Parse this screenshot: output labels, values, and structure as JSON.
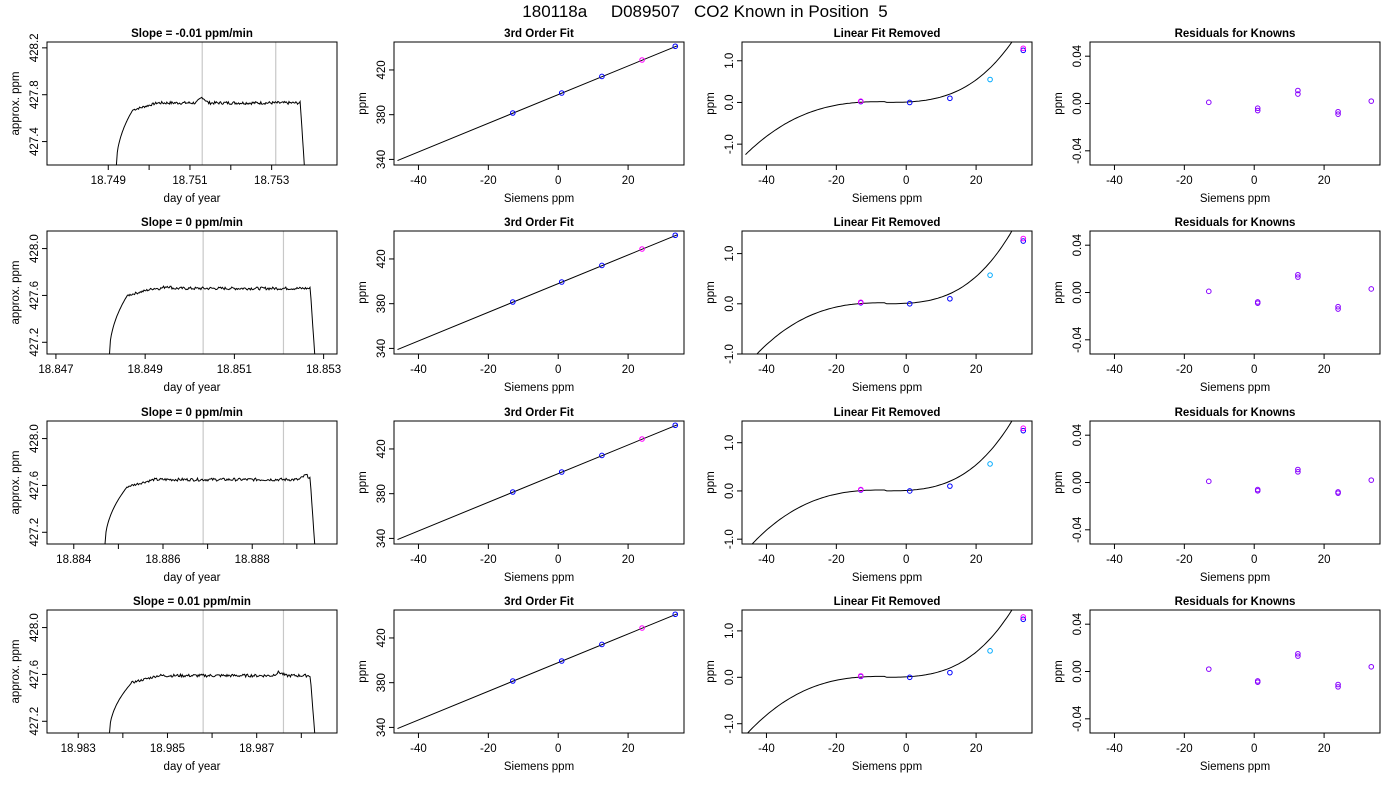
{
  "figure": {
    "title": "180118a     D089507   CO2 Known in Position  5"
  },
  "colors": {
    "blue": "#0000ff",
    "magenta": "#ff00ff",
    "cyan": "#00aaff",
    "purple": "#8800ff",
    "red": "#ff0000",
    "line": "#000000",
    "marker_lines": "#c8c8c8"
  },
  "chart_data": [
    {
      "row": 0,
      "type": "line",
      "title": "Slope =  -0.01  ppm/min",
      "xlabel": "day of year",
      "ylabel": "approx. ppm",
      "xlim": [
        18.7475,
        18.7546
      ],
      "ylim": [
        427.2,
        428.25
      ],
      "xticks": [
        "18.749",
        "18.751",
        "18.753"
      ],
      "xtick_values": [
        18.749,
        18.751,
        18.753
      ],
      "xminor": [
        18.75,
        18.752
      ],
      "yticks": [
        "427.4",
        "427.8",
        "428.2"
      ],
      "ytick_values": [
        427.4,
        427.8,
        428.2
      ],
      "vlines": [
        18.7513,
        18.7531
      ],
      "trace": {
        "start": 18.7492,
        "rise_end": 18.7496,
        "plateau": 427.73,
        "end_plateau": 18.7537,
        "end": 18.7538,
        "low": 427.2,
        "bump_x": 18.7513,
        "bump_h": 0.05
      }
    },
    {
      "row": 0,
      "type": "scatter",
      "title": "3rd Order Fit",
      "xlabel": "Siemens ppm",
      "ylabel": "ppm",
      "xlim": [
        -47,
        36
      ],
      "ylim": [
        335,
        445
      ],
      "xticks": [
        "-40",
        "-20",
        "0",
        "20"
      ],
      "xtick_values": [
        -40,
        -20,
        0,
        20
      ],
      "yticks": [
        "340",
        "380",
        "420"
      ],
      "ytick_values": [
        340,
        380,
        420
      ],
      "line": {
        "x0": -46,
        "y0": 339,
        "x1": 34,
        "y1": 441.5
      },
      "points": [
        {
          "x": -13,
          "y": 381.5,
          "c": "blue"
        },
        {
          "x": 1,
          "y": 399.4,
          "c": "blue"
        },
        {
          "x": 12.5,
          "y": 414.2,
          "c": "blue"
        },
        {
          "x": 24,
          "y": 428.9,
          "c": "magenta"
        },
        {
          "x": 33.5,
          "y": 441.2,
          "c": "blue"
        }
      ]
    },
    {
      "row": 0,
      "type": "scatter",
      "title": "Linear Fit Removed",
      "xlabel": "Siemens ppm",
      "ylabel": "ppm",
      "xlim": [
        -47,
        36
      ],
      "ylim": [
        -1.5,
        1.45
      ],
      "xticks": [
        "-40",
        "-20",
        "0",
        "20"
      ],
      "xtick_values": [
        -40,
        -20,
        0,
        20
      ],
      "yticks": [
        "-1.0",
        "0.0",
        "1.0"
      ],
      "ytick_values": [
        -1.0,
        0.0,
        1.0
      ],
      "curve_range": [
        -46,
        33.5
      ],
      "points": [
        {
          "x": -13,
          "y": 0.02,
          "c": "blue"
        },
        {
          "x": -13,
          "y": 0.03,
          "c": "magenta"
        },
        {
          "x": 1,
          "y": 0.0,
          "c": "blue"
        },
        {
          "x": 12.5,
          "y": 0.1,
          "c": "blue"
        },
        {
          "x": 24,
          "y": 0.55,
          "c": "cyan"
        },
        {
          "x": 33.5,
          "y": 1.25,
          "c": "blue"
        },
        {
          "x": 33.5,
          "y": 1.3,
          "c": "magenta"
        }
      ]
    },
    {
      "row": 0,
      "type": "scatter",
      "title": "Residuals for Knowns",
      "xlabel": "Siemens ppm",
      "ylabel": "ppm",
      "xlim": [
        -47,
        36
      ],
      "ylim": [
        -0.052,
        0.052
      ],
      "xticks": [
        "-40",
        "-20",
        "0",
        "20"
      ],
      "xtick_values": [
        -40,
        -20,
        0,
        20
      ],
      "yticks": [
        "-0.04",
        "0.00",
        "0.04"
      ],
      "ytick_values": [
        -0.04,
        0.0,
        0.04
      ],
      "points": [
        {
          "x": -13,
          "y": 0.001,
          "c": "purple"
        },
        {
          "x": 1,
          "y": -0.004,
          "c": "purple"
        },
        {
          "x": 1,
          "y": -0.006,
          "c": "purple"
        },
        {
          "x": 12.5,
          "y": 0.008,
          "c": "purple"
        },
        {
          "x": 12.5,
          "y": 0.011,
          "c": "purple"
        },
        {
          "x": 24,
          "y": -0.007,
          "c": "purple"
        },
        {
          "x": 24,
          "y": -0.009,
          "c": "purple"
        },
        {
          "x": 33.5,
          "y": 0.002,
          "c": "purple"
        }
      ]
    },
    {
      "row": 1,
      "type": "line",
      "title": "Slope =  0  ppm/min",
      "xlabel": "day of year",
      "ylabel": "approx. ppm",
      "xlim": [
        18.8468,
        18.8533
      ],
      "ylim": [
        427.1,
        428.15
      ],
      "xticks": [
        "18.847",
        "18.849",
        "18.851",
        "18.853"
      ],
      "xtick_values": [
        18.847,
        18.849,
        18.851,
        18.853
      ],
      "xminor": [],
      "yticks": [
        "427.2",
        "427.6",
        "428.0"
      ],
      "ytick_values": [
        427.2,
        427.6,
        428.0
      ],
      "vlines": [
        18.8503,
        18.8521
      ],
      "trace": {
        "start": 18.8482,
        "rise_end": 18.8486,
        "plateau": 427.66,
        "end_plateau": 18.8527,
        "end": 18.8528,
        "low": 427.1,
        "bump_x": 18.8495,
        "bump_h": 0.02
      }
    },
    {
      "row": 1,
      "type": "scatter",
      "title": "3rd Order Fit",
      "xlabel": "Siemens ppm",
      "ylabel": "ppm",
      "xlim": [
        -47,
        36
      ],
      "ylim": [
        335,
        445
      ],
      "xticks": [
        "-40",
        "-20",
        "0",
        "20"
      ],
      "xtick_values": [
        -40,
        -20,
        0,
        20
      ],
      "yticks": [
        "340",
        "380",
        "420"
      ],
      "ytick_values": [
        340,
        380,
        420
      ],
      "line": {
        "x0": -46,
        "y0": 339,
        "x1": 34,
        "y1": 441.5
      },
      "points": [
        {
          "x": -13,
          "y": 381.5,
          "c": "blue"
        },
        {
          "x": 1,
          "y": 399.4,
          "c": "blue"
        },
        {
          "x": 12.5,
          "y": 414.2,
          "c": "blue"
        },
        {
          "x": 24,
          "y": 428.9,
          "c": "magenta"
        },
        {
          "x": 33.5,
          "y": 441.2,
          "c": "blue"
        }
      ]
    },
    {
      "row": 1,
      "type": "scatter",
      "title": "Linear Fit Removed",
      "xlabel": "Siemens ppm",
      "ylabel": "ppm",
      "xlim": [
        -47,
        36
      ],
      "ylim": [
        -1.0,
        1.45
      ],
      "xticks": [
        "-40",
        "-20",
        "0",
        "20"
      ],
      "xtick_values": [
        -40,
        -20,
        0,
        20
      ],
      "yticks": [
        "-1.0",
        "0.0",
        "1.0"
      ],
      "ytick_values": [
        -1.0,
        0.0,
        1.0
      ],
      "curve_range": [
        -46,
        33.5
      ],
      "points": [
        {
          "x": -13,
          "y": 0.02,
          "c": "blue"
        },
        {
          "x": -13,
          "y": 0.03,
          "c": "magenta"
        },
        {
          "x": 1,
          "y": 0.0,
          "c": "blue"
        },
        {
          "x": 12.5,
          "y": 0.1,
          "c": "blue"
        },
        {
          "x": 24,
          "y": 0.57,
          "c": "cyan"
        },
        {
          "x": 33.5,
          "y": 1.25,
          "c": "blue"
        },
        {
          "x": 33.5,
          "y": 1.3,
          "c": "magenta"
        }
      ]
    },
    {
      "row": 1,
      "type": "scatter",
      "title": "Residuals for Knowns",
      "xlabel": "Siemens ppm",
      "ylabel": "ppm",
      "xlim": [
        -47,
        36
      ],
      "ylim": [
        -0.052,
        0.052
      ],
      "xticks": [
        "-40",
        "-20",
        "0",
        "20"
      ],
      "xtick_values": [
        -40,
        -20,
        0,
        20
      ],
      "yticks": [
        "-0.04",
        "0.00",
        "0.04"
      ],
      "ytick_values": [
        -0.04,
        0.0,
        0.04
      ],
      "points": [
        {
          "x": -13,
          "y": 0.001,
          "c": "purple"
        },
        {
          "x": 1,
          "y": -0.008,
          "c": "purple"
        },
        {
          "x": 1,
          "y": -0.009,
          "c": "purple"
        },
        {
          "x": 12.5,
          "y": 0.013,
          "c": "purple"
        },
        {
          "x": 12.5,
          "y": 0.015,
          "c": "purple"
        },
        {
          "x": 24,
          "y": -0.012,
          "c": "purple"
        },
        {
          "x": 24,
          "y": -0.014,
          "c": "purple"
        },
        {
          "x": 33.5,
          "y": 0.003,
          "c": "purple"
        }
      ]
    },
    {
      "row": 2,
      "type": "line",
      "title": "Slope =  0  ppm/min",
      "xlabel": "day of year",
      "ylabel": "approx. ppm",
      "xlim": [
        18.8834,
        18.8899
      ],
      "ylim": [
        427.1,
        428.15
      ],
      "xticks": [
        "18.884",
        "18.886",
        "18.888"
      ],
      "xtick_values": [
        18.884,
        18.886,
        18.888
      ],
      "xminor": [
        18.885,
        18.887,
        18.889
      ],
      "yticks": [
        "427.2",
        "427.6",
        "428.0"
      ],
      "ytick_values": [
        427.2,
        427.6,
        428.0
      ],
      "vlines": [
        18.8869,
        18.8887
      ],
      "trace": {
        "start": 18.8847,
        "rise_end": 18.8852,
        "plateau": 427.65,
        "end_plateau": 18.8893,
        "end": 18.8894,
        "low": 427.1,
        "bump_x": 18.8892,
        "bump_h": 0.04
      }
    },
    {
      "row": 2,
      "type": "scatter",
      "title": "3rd Order Fit",
      "xlabel": "Siemens ppm",
      "ylabel": "ppm",
      "xlim": [
        -47,
        36
      ],
      "ylim": [
        335,
        445
      ],
      "xticks": [
        "-40",
        "-20",
        "0",
        "20"
      ],
      "xtick_values": [
        -40,
        -20,
        0,
        20
      ],
      "yticks": [
        "340",
        "380",
        "420"
      ],
      "ytick_values": [
        340,
        380,
        420
      ],
      "line": {
        "x0": -46,
        "y0": 339,
        "x1": 34,
        "y1": 441.5
      },
      "points": [
        {
          "x": -13,
          "y": 381.5,
          "c": "blue"
        },
        {
          "x": 1,
          "y": 399.4,
          "c": "blue"
        },
        {
          "x": 12.5,
          "y": 414.2,
          "c": "blue"
        },
        {
          "x": 24,
          "y": 428.9,
          "c": "magenta"
        },
        {
          "x": 33.5,
          "y": 441.2,
          "c": "blue"
        }
      ]
    },
    {
      "row": 2,
      "type": "scatter",
      "title": "Linear Fit Removed",
      "xlabel": "Siemens ppm",
      "ylabel": "ppm",
      "xlim": [
        -47,
        36
      ],
      "ylim": [
        -1.1,
        1.45
      ],
      "xticks": [
        "-40",
        "-20",
        "0",
        "20"
      ],
      "xtick_values": [
        -40,
        -20,
        0,
        20
      ],
      "yticks": [
        "-1.0",
        "0.0",
        "1.0"
      ],
      "ytick_values": [
        -1.0,
        0.0,
        1.0
      ],
      "curve_range": [
        -46,
        33.5
      ],
      "points": [
        {
          "x": -13,
          "y": 0.02,
          "c": "blue"
        },
        {
          "x": -13,
          "y": 0.03,
          "c": "magenta"
        },
        {
          "x": 1,
          "y": 0.0,
          "c": "blue"
        },
        {
          "x": 12.5,
          "y": 0.1,
          "c": "blue"
        },
        {
          "x": 24,
          "y": 0.56,
          "c": "cyan"
        },
        {
          "x": 33.5,
          "y": 1.25,
          "c": "blue"
        },
        {
          "x": 33.5,
          "y": 1.3,
          "c": "magenta"
        }
      ]
    },
    {
      "row": 2,
      "type": "scatter",
      "title": "Residuals for Knowns",
      "xlabel": "Siemens ppm",
      "ylabel": "ppm",
      "xlim": [
        -47,
        36
      ],
      "ylim": [
        -0.052,
        0.052
      ],
      "xticks": [
        "-40",
        "-20",
        "0",
        "20"
      ],
      "xtick_values": [
        -40,
        -20,
        0,
        20
      ],
      "yticks": [
        "-0.04",
        "0.00",
        "0.04"
      ],
      "ytick_values": [
        -0.04,
        0.0,
        0.04
      ],
      "points": [
        {
          "x": -13,
          "y": 0.001,
          "c": "purple"
        },
        {
          "x": 1,
          "y": -0.006,
          "c": "purple"
        },
        {
          "x": 1,
          "y": -0.007,
          "c": "purple"
        },
        {
          "x": 12.5,
          "y": 0.009,
          "c": "purple"
        },
        {
          "x": 12.5,
          "y": 0.011,
          "c": "purple"
        },
        {
          "x": 24,
          "y": -0.008,
          "c": "purple"
        },
        {
          "x": 24,
          "y": -0.009,
          "c": "purple"
        },
        {
          "x": 33.5,
          "y": 0.002,
          "c": "purple"
        }
      ]
    },
    {
      "row": 3,
      "type": "line",
      "title": "Slope =  0.01  ppm/min",
      "xlabel": "day of year",
      "ylabel": "approx. ppm",
      "xlim": [
        18.9823,
        18.9888
      ],
      "ylim": [
        427.1,
        428.15
      ],
      "xticks": [
        "18.983",
        "18.985",
        "18.987"
      ],
      "xtick_values": [
        18.983,
        18.985,
        18.987
      ],
      "xminor": [
        18.984,
        18.986,
        18.988
      ],
      "yticks": [
        "427.2",
        "427.6",
        "428.0"
      ],
      "ytick_values": [
        427.2,
        427.6,
        428.0
      ],
      "vlines": [
        18.9858,
        18.9876
      ],
      "trace": {
        "start": 18.9837,
        "rise_end": 18.9842,
        "plateau": 427.59,
        "end_plateau": 18.9882,
        "end": 18.9883,
        "low": 427.1,
        "bump_x": 18.9875,
        "bump_h": 0.03
      }
    },
    {
      "row": 3,
      "type": "scatter",
      "title": "3rd Order Fit",
      "xlabel": "Siemens ppm",
      "ylabel": "ppm",
      "xlim": [
        -47,
        36
      ],
      "ylim": [
        335,
        445
      ],
      "xticks": [
        "-40",
        "-20",
        "0",
        "20"
      ],
      "xtick_values": [
        -40,
        -20,
        0,
        20
      ],
      "yticks": [
        "340",
        "380",
        "420"
      ],
      "ytick_values": [
        340,
        380,
        420
      ],
      "line": {
        "x0": -46,
        "y0": 339,
        "x1": 34,
        "y1": 441.5
      },
      "points": [
        {
          "x": -13,
          "y": 381.5,
          "c": "blue"
        },
        {
          "x": 1,
          "y": 399.4,
          "c": "blue"
        },
        {
          "x": 12.5,
          "y": 414.2,
          "c": "blue"
        },
        {
          "x": 24,
          "y": 428.9,
          "c": "magenta"
        },
        {
          "x": 33.5,
          "y": 441.2,
          "c": "blue"
        }
      ]
    },
    {
      "row": 3,
      "type": "scatter",
      "title": "Linear Fit Removed",
      "xlabel": "Siemens ppm",
      "ylabel": "ppm",
      "xlim": [
        -47,
        36
      ],
      "ylim": [
        -1.2,
        1.45
      ],
      "xticks": [
        "-40",
        "-20",
        "0",
        "20"
      ],
      "xtick_values": [
        -40,
        -20,
        0,
        20
      ],
      "yticks": [
        "-1.0",
        "0.0",
        "1.0"
      ],
      "ytick_values": [
        -1.0,
        0.0,
        1.0
      ],
      "curve_range": [
        -46,
        33.5
      ],
      "points": [
        {
          "x": -13,
          "y": 0.02,
          "c": "blue"
        },
        {
          "x": -13,
          "y": 0.03,
          "c": "magenta"
        },
        {
          "x": 1,
          "y": 0.0,
          "c": "blue"
        },
        {
          "x": 12.5,
          "y": 0.1,
          "c": "blue"
        },
        {
          "x": 24,
          "y": 0.57,
          "c": "cyan"
        },
        {
          "x": 33.5,
          "y": 1.25,
          "c": "blue"
        },
        {
          "x": 33.5,
          "y": 1.3,
          "c": "magenta"
        }
      ]
    },
    {
      "row": 3,
      "type": "scatter",
      "title": "Residuals for Knowns",
      "xlabel": "Siemens ppm",
      "ylabel": "ppm",
      "xlim": [
        -47,
        36
      ],
      "ylim": [
        -0.052,
        0.052
      ],
      "xticks": [
        "-40",
        "-20",
        "0",
        "20"
      ],
      "xtick_values": [
        -40,
        -20,
        0,
        20
      ],
      "yticks": [
        "-0.04",
        "0.00",
        "0.04"
      ],
      "ytick_values": [
        -0.04,
        0.0,
        0.04
      ],
      "points": [
        {
          "x": -13,
          "y": 0.002,
          "c": "purple"
        },
        {
          "x": 1,
          "y": -0.008,
          "c": "purple"
        },
        {
          "x": 1,
          "y": -0.009,
          "c": "purple"
        },
        {
          "x": 12.5,
          "y": 0.013,
          "c": "purple"
        },
        {
          "x": 12.5,
          "y": 0.015,
          "c": "purple"
        },
        {
          "x": 24,
          "y": -0.011,
          "c": "purple"
        },
        {
          "x": 24,
          "y": -0.013,
          "c": "purple"
        },
        {
          "x": 33.5,
          "y": 0.004,
          "c": "purple"
        }
      ]
    }
  ]
}
